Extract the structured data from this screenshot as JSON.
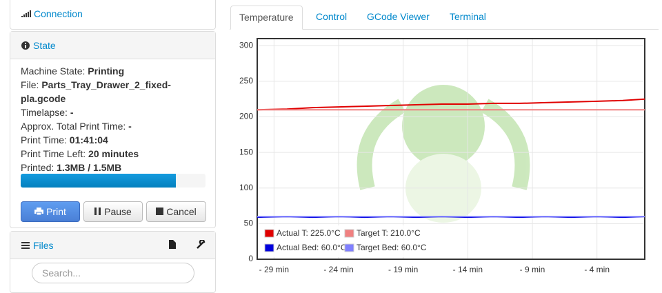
{
  "sidebar": {
    "connection": {
      "title": "Connection"
    },
    "state": {
      "title": "State",
      "rows": [
        {
          "label": "Machine State:",
          "value": "Printing"
        },
        {
          "label": "File:",
          "value": "Parts_Tray_Drawer_2_fixed-pla.gcode"
        },
        {
          "label": "Timelapse:",
          "value": "-"
        },
        {
          "label": "Approx. Total Print Time:",
          "value": "-"
        },
        {
          "label": "Print Time:",
          "value": "01:41:04"
        },
        {
          "label": "Print Time Left:",
          "value": "20 minutes"
        },
        {
          "label": "Printed:",
          "value": "1.3MB / 1.5MB"
        }
      ],
      "progress": 84,
      "buttons": [
        "Print",
        "Pause",
        "Cancel"
      ]
    },
    "files": {
      "title": "Files",
      "search_placeholder": "Search..."
    }
  },
  "tabs": [
    "Temperature",
    "Control",
    "GCode Viewer",
    "Terminal"
  ],
  "chart_data": {
    "type": "line",
    "x": [
      -30.3,
      -28,
      -26,
      -24,
      -22,
      -20,
      -18,
      -16,
      -14,
      -12,
      -10,
      -8,
      -6,
      -4,
      -2,
      -0.3
    ],
    "series": [
      {
        "name": "Actual T: 225.0°C",
        "color": "#e00000",
        "values": [
          210,
          211,
          213,
          214,
          215,
          216,
          217,
          218,
          218,
          219,
          219,
          220,
          221,
          222,
          223,
          225
        ]
      },
      {
        "name": "Target T: 210.0°C",
        "color": "#f08080",
        "values": [
          210,
          210,
          210,
          210,
          210,
          210,
          210,
          210,
          210,
          210,
          210,
          210,
          210,
          210,
          210,
          210
        ]
      },
      {
        "name": "Actual Bed: 60.0°C",
        "color": "#0000dd",
        "values": [
          59,
          60,
          59,
          60,
          59,
          60,
          59,
          60,
          59,
          60,
          59,
          60,
          59,
          60,
          59,
          60
        ]
      },
      {
        "name": "Target Bed: 60.0°C",
        "color": "#8080ff",
        "values": [
          60,
          60,
          60,
          60,
          60,
          60,
          60,
          60,
          60,
          60,
          60,
          60,
          60,
          60,
          60,
          60
        ]
      }
    ],
    "xlim": [
      -30.3,
      -0.3
    ],
    "xticks": [
      {
        "value": -29,
        "label": "- 29 min"
      },
      {
        "value": -24,
        "label": "- 24 min"
      },
      {
        "value": -19,
        "label": "- 19 min"
      },
      {
        "value": -14,
        "label": "- 14 min"
      },
      {
        "value": -9,
        "label": "- 9 min"
      },
      {
        "value": -4,
        "label": "- 4 min"
      }
    ],
    "ylim": [
      0,
      310
    ],
    "yticks": [
      0,
      50,
      100,
      150,
      200,
      250,
      300
    ],
    "grid": true,
    "legend": "lower left"
  }
}
